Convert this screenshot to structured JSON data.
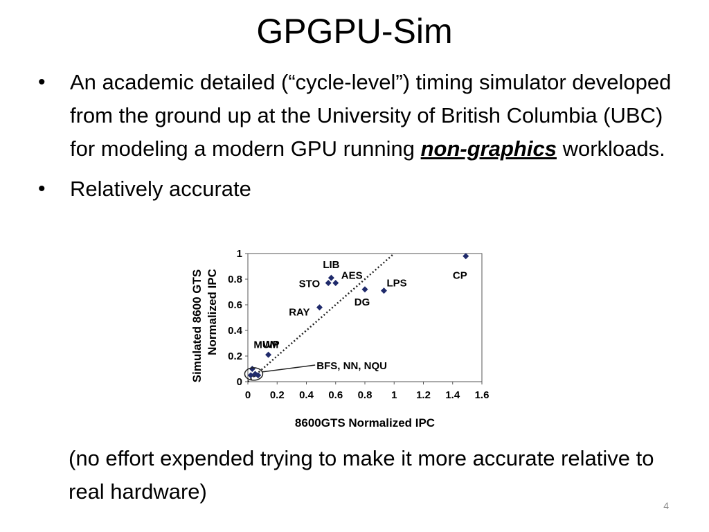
{
  "slide": {
    "title": "GPGPU-Sim",
    "bullets": [
      {
        "text_before": "An academic detailed (“cycle-level”) timing simulator developed from the ground up at the University of British Columbia (UBC) for modeling a modern GPU running ",
        "emphasis": "non-graphics",
        "text_after": " workloads."
      },
      {
        "text": "Relatively accurate"
      }
    ],
    "note": "(no effort expended trying to make it more accurate relative to real hardware)",
    "slide_number": "4"
  },
  "chart_data": {
    "type": "scatter",
    "xlabel": "8600GTS Normalized IPC",
    "ylabel": "Simulated 8600 GTS Normalized IPC",
    "xlim": [
      0,
      1.6
    ],
    "ylim": [
      0,
      1
    ],
    "xticks": [
      "0",
      "0.2",
      "0.4",
      "0.6",
      "0.8",
      "1",
      "1.2",
      "1.4",
      "1.6"
    ],
    "yticks": [
      "0",
      "0.2",
      "0.4",
      "0.6",
      "0.8",
      "1"
    ],
    "marker_color": "#1f2a6b",
    "reference_line": {
      "from": [
        0,
        0
      ],
      "to": [
        1.0,
        1.0
      ],
      "style": "dotted"
    },
    "points": [
      {
        "label": "CP",
        "x": 1.49,
        "y": 0.98
      },
      {
        "label": "LIB",
        "x": 0.57,
        "y": 0.81
      },
      {
        "label": "AES",
        "x": 0.6,
        "y": 0.77
      },
      {
        "label": "STO",
        "x": 0.55,
        "y": 0.77
      },
      {
        "label": "DG",
        "x": 0.8,
        "y": 0.72
      },
      {
        "label": "LPS",
        "x": 0.93,
        "y": 0.71
      },
      {
        "label": "RAY",
        "x": 0.49,
        "y": 0.58
      },
      {
        "label": "WP",
        "x": 0.14,
        "y": 0.21
      },
      {
        "label": "MUM",
        "x": 0.03,
        "y": 0.1
      },
      {
        "label": "",
        "x": 0.02,
        "y": 0.05
      },
      {
        "label": "",
        "x": 0.05,
        "y": 0.06
      },
      {
        "label": "",
        "x": 0.07,
        "y": 0.05
      }
    ],
    "annotation": {
      "text": "BFS, NN, NQU",
      "target": [
        0.04,
        0.06
      ]
    }
  }
}
